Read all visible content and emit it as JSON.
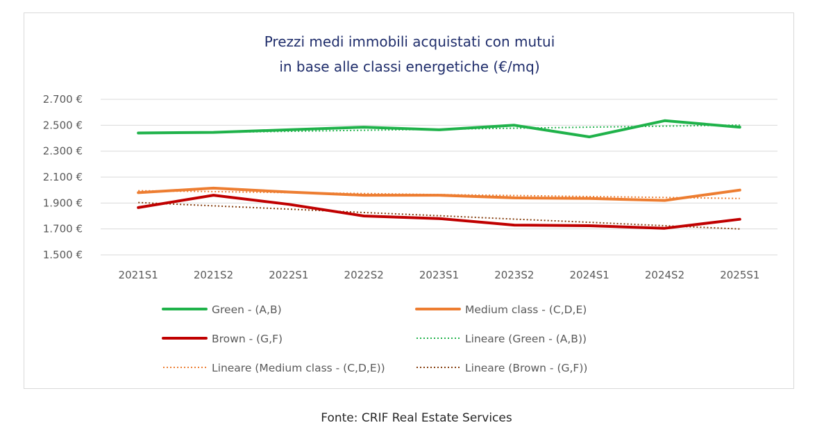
{
  "chart_data": {
    "type": "line",
    "title": [
      "Prezzi medi immobili acquistati con mutui",
      "in base alle classi energetiche (€/mq)"
    ],
    "categories": [
      "2021S1",
      "2021S2",
      "2022S1",
      "2022S2",
      "2023S1",
      "2023S2",
      "2024S1",
      "2024S2",
      "2025S1"
    ],
    "ylim": [
      1500,
      2700
    ],
    "yticks": [
      1500,
      1700,
      1900,
      2100,
      2300,
      2500,
      2700
    ],
    "ytick_labels": [
      "1.500 €",
      "1.700 €",
      "1.900 €",
      "2.100 €",
      "2.300 €",
      "2.500 €",
      "2.700 €"
    ],
    "grid": "horizontal",
    "legend_position": "bottom",
    "series": [
      {
        "name": "Green - (A,B)",
        "color": "#1fb24a",
        "style": "solid",
        "values": [
          2440,
          2445,
          2465,
          2485,
          2465,
          2500,
          2410,
          2535,
          2485
        ]
      },
      {
        "name": "Medium class - (C,D,E)",
        "color": "#ed7d31",
        "style": "solid",
        "values": [
          1980,
          2015,
          1985,
          1960,
          1960,
          1940,
          1935,
          1920,
          2000
        ]
      },
      {
        "name": "Brown - (G,F)",
        "color": "#c00000",
        "style": "solid",
        "values": [
          1865,
          1960,
          1890,
          1800,
          1780,
          1730,
          1725,
          1705,
          1775
        ]
      },
      {
        "name": "Lineare (Green - (A,B))",
        "color": "#1fb24a",
        "style": "dotted",
        "values": [
          2437,
          2445,
          2453,
          2461,
          2469,
          2477,
          2485,
          2493,
          2501
        ]
      },
      {
        "name": "Lineare (Medium class - (C,D,E))",
        "color": "#ed7d31",
        "style": "dotted",
        "values": [
          1995,
          1988,
          1980,
          1973,
          1965,
          1958,
          1950,
          1943,
          1935
        ]
      },
      {
        "name": "Lineare (Brown - (G,F))",
        "color": "#843c0c",
        "style": "dotted",
        "values": [
          1904,
          1878,
          1853,
          1827,
          1802,
          1776,
          1751,
          1725,
          1700
        ]
      }
    ]
  },
  "source": "Fonte: CRIF Real Estate Services"
}
